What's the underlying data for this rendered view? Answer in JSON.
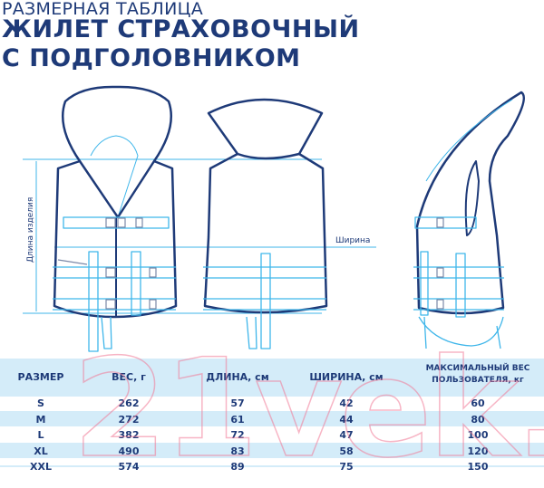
{
  "header": {
    "subtitle": "РАЗМЕРНАЯ ТАБЛИЦА",
    "title_line1": "ЖИЛЕТ СТРАХОВОЧНЫЙ",
    "title_line2": "С ПОДГОЛОВНИКОМ"
  },
  "drawing": {
    "length_label": "Длина изделия",
    "width_label": "Ширина"
  },
  "table": {
    "headers": [
      "РАЗМЕР",
      "ВЕС, г",
      "ДЛИНА, см",
      "ШИРИНА, см",
      "МАКСИМАЛЬНЫЙ ВЕС",
      "ПОЛЬЗОВАТЕЛЯ, кг"
    ],
    "rows": [
      [
        "S",
        "262",
        "57",
        "42",
        "60"
      ],
      [
        "M",
        "272",
        "61",
        "44",
        "80"
      ],
      [
        "L",
        "382",
        "72",
        "47",
        "100"
      ],
      [
        "XL",
        "490",
        "83",
        "58",
        "120"
      ],
      [
        "XXL",
        "574",
        "89",
        "75",
        "150"
      ]
    ]
  },
  "watermark": "21vek.by",
  "colors": {
    "navy": "#1e3a78",
    "accent": "#3fb6ea",
    "band": "#d4ecf9"
  }
}
